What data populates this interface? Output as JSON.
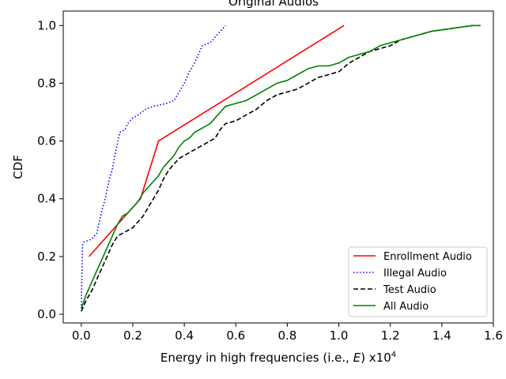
{
  "chart_data": {
    "type": "line",
    "title": "Original Audios",
    "xlabel": "Energy in high frequencies (i.e., E) x10",
    "xlabel_parts": {
      "prefix": "Energy in high frequencies (i.e., ",
      "var": "E",
      "suffix": ") x10",
      "exponent": "4"
    },
    "ylabel": "CDF",
    "xlim": [
      -0.07,
      1.6
    ],
    "ylim": [
      -0.03,
      1.05
    ],
    "xticks": [
      0.0,
      0.2,
      0.4,
      0.6,
      0.8,
      1.0,
      1.2,
      1.4,
      1.6
    ],
    "xtick_labels": [
      "0.0",
      "0.2",
      "0.4",
      "0.6",
      "0.8",
      "1.0",
      "1.2",
      "1.4",
      "1.6"
    ],
    "yticks": [
      0.0,
      0.2,
      0.4,
      0.6,
      0.8,
      1.0
    ],
    "ytick_labels": [
      "0.0",
      "0.2",
      "0.4",
      "0.6",
      "0.8",
      "1.0"
    ],
    "grid": false,
    "legend_position": "lower-right",
    "series": [
      {
        "name": "Enrollment Audio",
        "color": "#ff0000",
        "style": "solid",
        "x": [
          0.03,
          0.23,
          0.3,
          1.02
        ],
        "y": [
          0.2,
          0.4,
          0.6,
          1.0
        ]
      },
      {
        "name": "Illegal Audio",
        "color": "#0000ff",
        "style": "dotted",
        "x": [
          0.0,
          0.005,
          0.01,
          0.04,
          0.06,
          0.08,
          0.09,
          0.11,
          0.12,
          0.13,
          0.15,
          0.17,
          0.18,
          0.2,
          0.22,
          0.25,
          0.28,
          0.33,
          0.36,
          0.38,
          0.4,
          0.42,
          0.44,
          0.46,
          0.47,
          0.5,
          0.52,
          0.54,
          0.56
        ],
        "y": [
          0.02,
          0.24,
          0.25,
          0.26,
          0.28,
          0.36,
          0.39,
          0.47,
          0.5,
          0.55,
          0.63,
          0.64,
          0.66,
          0.68,
          0.69,
          0.71,
          0.72,
          0.73,
          0.74,
          0.77,
          0.8,
          0.84,
          0.87,
          0.91,
          0.93,
          0.94,
          0.96,
          0.98,
          1.0
        ]
      },
      {
        "name": "Test Audio",
        "color": "#000000",
        "style": "dashed",
        "x": [
          0.0,
          0.02,
          0.04,
          0.06,
          0.08,
          0.1,
          0.12,
          0.14,
          0.16,
          0.18,
          0.2,
          0.22,
          0.24,
          0.26,
          0.28,
          0.3,
          0.32,
          0.34,
          0.36,
          0.38,
          0.4,
          0.42,
          0.44,
          0.46,
          0.48,
          0.5,
          0.52,
          0.54,
          0.56,
          0.6,
          0.64,
          0.68,
          0.72,
          0.76,
          0.8,
          0.84,
          0.88,
          0.92,
          0.96,
          1.0,
          1.04,
          1.08,
          1.12,
          1.16,
          1.2,
          1.24,
          1.28,
          1.32,
          1.36,
          1.4,
          1.44,
          1.48,
          1.52,
          1.55
        ],
        "y": [
          0.01,
          0.05,
          0.08,
          0.12,
          0.16,
          0.2,
          0.24,
          0.27,
          0.28,
          0.29,
          0.3,
          0.32,
          0.34,
          0.37,
          0.4,
          0.43,
          0.47,
          0.5,
          0.52,
          0.54,
          0.55,
          0.56,
          0.57,
          0.58,
          0.59,
          0.6,
          0.61,
          0.64,
          0.66,
          0.67,
          0.69,
          0.71,
          0.74,
          0.76,
          0.77,
          0.78,
          0.8,
          0.82,
          0.83,
          0.84,
          0.87,
          0.89,
          0.91,
          0.92,
          0.93,
          0.95,
          0.96,
          0.97,
          0.98,
          0.985,
          0.99,
          0.995,
          1.0,
          1.0
        ]
      },
      {
        "name": "All Audio",
        "color": "#008000",
        "style": "solid",
        "x": [
          0.0,
          0.02,
          0.04,
          0.06,
          0.08,
          0.1,
          0.12,
          0.14,
          0.16,
          0.18,
          0.2,
          0.22,
          0.24,
          0.26,
          0.28,
          0.3,
          0.32,
          0.34,
          0.36,
          0.38,
          0.4,
          0.42,
          0.44,
          0.46,
          0.48,
          0.5,
          0.52,
          0.54,
          0.56,
          0.6,
          0.64,
          0.68,
          0.72,
          0.76,
          0.8,
          0.84,
          0.88,
          0.92,
          0.96,
          1.0,
          1.04,
          1.08,
          1.12,
          1.16,
          1.2,
          1.24,
          1.28,
          1.32,
          1.36,
          1.4,
          1.44,
          1.48,
          1.52,
          1.55
        ],
        "y": [
          0.02,
          0.07,
          0.11,
          0.15,
          0.19,
          0.23,
          0.27,
          0.31,
          0.34,
          0.35,
          0.37,
          0.39,
          0.42,
          0.44,
          0.46,
          0.48,
          0.51,
          0.53,
          0.55,
          0.58,
          0.6,
          0.61,
          0.63,
          0.64,
          0.65,
          0.66,
          0.68,
          0.7,
          0.72,
          0.73,
          0.74,
          0.76,
          0.78,
          0.8,
          0.81,
          0.83,
          0.85,
          0.86,
          0.86,
          0.87,
          0.89,
          0.9,
          0.91,
          0.93,
          0.94,
          0.95,
          0.96,
          0.97,
          0.98,
          0.985,
          0.99,
          0.995,
          1.0,
          1.0
        ]
      }
    ]
  }
}
